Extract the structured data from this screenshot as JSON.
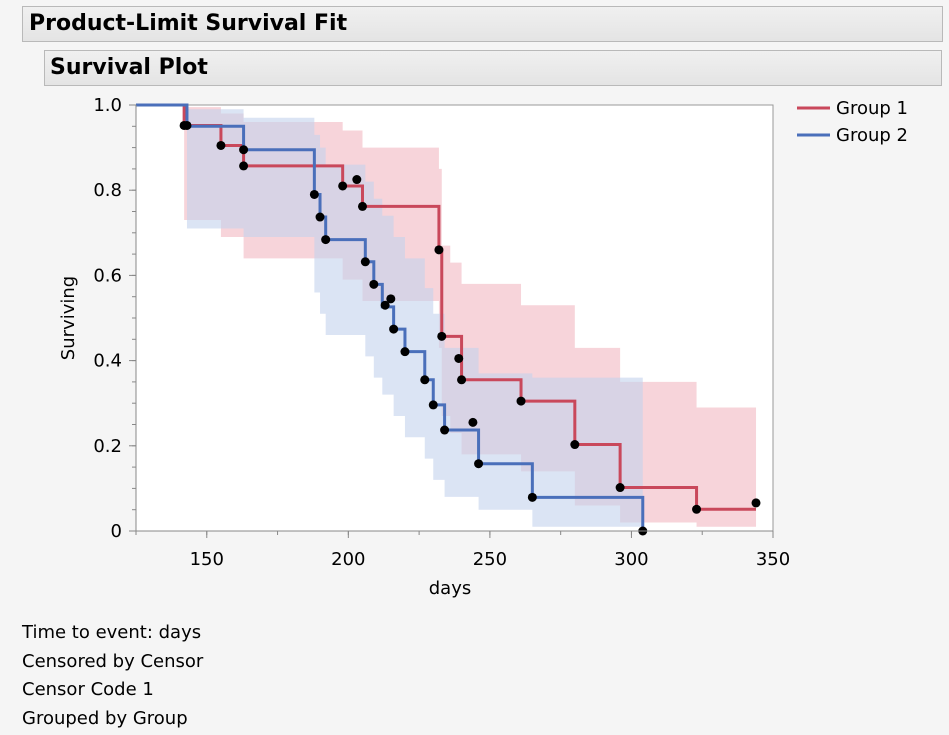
{
  "header": {
    "title": "Product-Limit Survival Fit"
  },
  "section": {
    "title": "Survival Plot"
  },
  "chart_data": {
    "type": "line",
    "subtype": "kaplan-meier-step",
    "xlabel": "days",
    "ylabel": "Surviving",
    "xlim": [
      125,
      350
    ],
    "ylim": [
      0,
      1
    ],
    "xticks": [
      150,
      200,
      250,
      300,
      350
    ],
    "xtick_labels": [
      "150",
      "200",
      "250",
      "300",
      "350"
    ],
    "yticks": [
      0,
      0.2,
      0.4,
      0.6,
      0.8,
      1.0
    ],
    "ytick_labels": [
      "0",
      "0.2",
      "0.4",
      "0.6",
      "0.8",
      "1.0"
    ],
    "legend_position": "top-right",
    "series": [
      {
        "name": "Group 1",
        "color": "#c9485b",
        "band_color": "#f2b8c2",
        "steps": [
          [
            125,
            1.0
          ],
          [
            142,
            0.952
          ],
          [
            155,
            0.905
          ],
          [
            163,
            0.857
          ],
          [
            198,
            0.81
          ],
          [
            205,
            0.762
          ],
          [
            232,
            0.66
          ],
          [
            233,
            0.457
          ],
          [
            240,
            0.355
          ],
          [
            261,
            0.305
          ],
          [
            280,
            0.203
          ],
          [
            296,
            0.102
          ],
          [
            323,
            0.051
          ],
          [
            344,
            0.051
          ]
        ],
        "band": [
          [
            125,
            1.0,
            1.0
          ],
          [
            142,
            0.73,
            0.995
          ],
          [
            155,
            0.69,
            0.98
          ],
          [
            163,
            0.64,
            0.96
          ],
          [
            198,
            0.59,
            0.94
          ],
          [
            205,
            0.54,
            0.9
          ],
          [
            232,
            0.43,
            0.85
          ],
          [
            233,
            0.27,
            0.67
          ],
          [
            236,
            0.23,
            0.63
          ],
          [
            240,
            0.18,
            0.58
          ],
          [
            261,
            0.14,
            0.53
          ],
          [
            280,
            0.06,
            0.43
          ],
          [
            296,
            0.02,
            0.35
          ],
          [
            323,
            0.01,
            0.29
          ],
          [
            344,
            0.01,
            0.29
          ]
        ],
        "censored_points": [
          [
            142,
            0.952
          ],
          [
            155,
            0.905
          ],
          [
            163,
            0.857
          ],
          [
            198,
            0.81
          ],
          [
            203,
            0.825
          ],
          [
            205,
            0.762
          ],
          [
            232,
            0.66
          ],
          [
            233,
            0.457
          ],
          [
            239,
            0.405
          ],
          [
            240,
            0.355
          ],
          [
            244,
            0.255
          ],
          [
            261,
            0.305
          ],
          [
            280,
            0.203
          ],
          [
            296,
            0.102
          ],
          [
            323,
            0.051
          ],
          [
            344,
            0.066
          ]
        ]
      },
      {
        "name": "Group 2",
        "color": "#4a6fba",
        "band_color": "#c3d2ec",
        "steps": [
          [
            125,
            1.0
          ],
          [
            143,
            0.95
          ],
          [
            151,
            0.95
          ],
          [
            163,
            0.895
          ],
          [
            188,
            0.79
          ],
          [
            190,
            0.737
          ],
          [
            192,
            0.684
          ],
          [
            206,
            0.632
          ],
          [
            209,
            0.579
          ],
          [
            212,
            0.526
          ],
          [
            216,
            0.474
          ],
          [
            220,
            0.421
          ],
          [
            227,
            0.355
          ],
          [
            230,
            0.296
          ],
          [
            234,
            0.237
          ],
          [
            246,
            0.158
          ],
          [
            265,
            0.079
          ],
          [
            304,
            0.0
          ]
        ],
        "band": [
          [
            125,
            1.0,
            1.0
          ],
          [
            143,
            0.71,
            0.99
          ],
          [
            151,
            0.71,
            0.99
          ],
          [
            163,
            0.69,
            0.97
          ],
          [
            188,
            0.56,
            0.93
          ],
          [
            190,
            0.51,
            0.9
          ],
          [
            192,
            0.46,
            0.86
          ],
          [
            206,
            0.41,
            0.82
          ],
          [
            209,
            0.36,
            0.78
          ],
          [
            212,
            0.32,
            0.74
          ],
          [
            216,
            0.27,
            0.69
          ],
          [
            220,
            0.22,
            0.64
          ],
          [
            227,
            0.17,
            0.57
          ],
          [
            230,
            0.12,
            0.51
          ],
          [
            234,
            0.08,
            0.43
          ],
          [
            246,
            0.05,
            0.37
          ],
          [
            265,
            0.01,
            0.36
          ],
          [
            304,
            0.0,
            0.36
          ]
        ],
        "censored_points": [
          [
            143,
            0.952
          ],
          [
            163,
            0.895
          ],
          [
            188,
            0.79
          ],
          [
            190,
            0.737
          ],
          [
            192,
            0.684
          ],
          [
            206,
            0.632
          ],
          [
            209,
            0.579
          ],
          [
            213,
            0.53
          ],
          [
            215,
            0.545
          ],
          [
            216,
            0.474
          ],
          [
            220,
            0.421
          ],
          [
            227,
            0.355
          ],
          [
            230,
            0.296
          ],
          [
            234,
            0.237
          ],
          [
            246,
            0.158
          ],
          [
            265,
            0.079
          ],
          [
            304,
            0.0
          ]
        ]
      }
    ]
  },
  "notes": {
    "time_to_event": "Time to event: days",
    "censored_by": "Censored by Censor",
    "censor_code": "Censor Code 1",
    "grouped_by": "Grouped by Group"
  }
}
